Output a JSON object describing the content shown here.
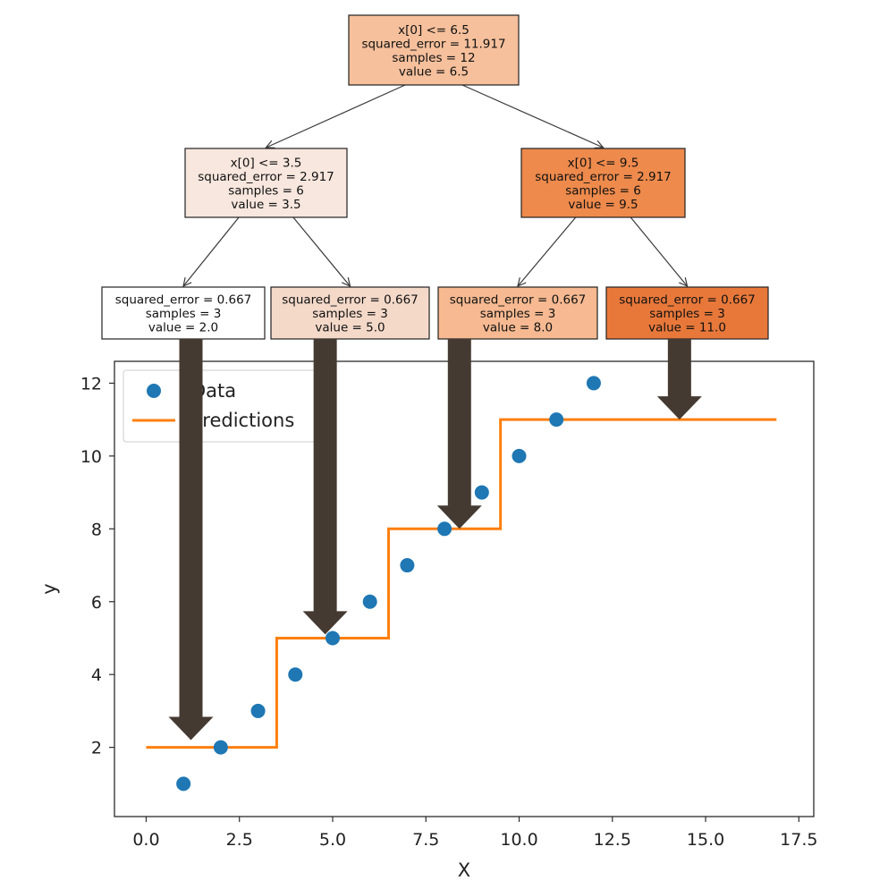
{
  "tree": {
    "nodes": [
      {
        "id": "root",
        "lines": [
          "x[0] <= 6.5",
          "squared_error = 11.917",
          "samples = 12",
          "value = 6.5"
        ],
        "fill": "#f6c09c"
      },
      {
        "id": "left",
        "lines": [
          "x[0] <= 3.5",
          "squared_error = 2.917",
          "samples = 6",
          "value = 3.5"
        ],
        "fill": "#f8e7de"
      },
      {
        "id": "right",
        "lines": [
          "x[0] <= 9.5",
          "squared_error = 2.917",
          "samples = 6",
          "value = 9.5"
        ],
        "fill": "#ee8a4c"
      },
      {
        "id": "leaf1",
        "lines": [
          "squared_error = 0.667",
          "samples = 3",
          "value = 2.0"
        ],
        "fill": "#ffffff"
      },
      {
        "id": "leaf2",
        "lines": [
          "squared_error = 0.667",
          "samples = 3",
          "value = 5.0"
        ],
        "fill": "#f4d9c9"
      },
      {
        "id": "leaf3",
        "lines": [
          "squared_error = 0.667",
          "samples = 3",
          "value = 8.0"
        ],
        "fill": "#f6b991"
      },
      {
        "id": "leaf4",
        "lines": [
          "squared_error = 0.667",
          "samples = 3",
          "value = 11.0"
        ],
        "fill": "#e8783a"
      }
    ],
    "edges": [
      [
        "root",
        "left"
      ],
      [
        "root",
        "right"
      ],
      [
        "left",
        "leaf1"
      ],
      [
        "left",
        "leaf2"
      ],
      [
        "right",
        "leaf3"
      ],
      [
        "right",
        "leaf4"
      ]
    ]
  },
  "chart_data": {
    "type": "scatter",
    "xlabel": "X",
    "ylabel": "y",
    "xlim": [
      -0.85,
      17.9
    ],
    "ylim": [
      0.1,
      12.6
    ],
    "xticks": [
      0.0,
      2.5,
      5.0,
      7.5,
      10.0,
      12.5,
      15.0,
      17.5
    ],
    "xtick_labels": [
      "0.0",
      "2.5",
      "5.0",
      "7.5",
      "10.0",
      "12.5",
      "15.0",
      "17.5"
    ],
    "yticks": [
      2,
      4,
      6,
      8,
      10,
      12
    ],
    "ytick_labels": [
      "2",
      "4",
      "6",
      "8",
      "10",
      "12"
    ],
    "grid": false,
    "legend_position": "top-left",
    "series": [
      {
        "name": "Data",
        "type": "scatter",
        "color": "#1f77b4",
        "x": [
          1,
          2,
          3,
          4,
          5,
          6,
          7,
          8,
          9,
          10,
          11,
          12
        ],
        "y": [
          1,
          2,
          3,
          4,
          5,
          6,
          7,
          8,
          9,
          10,
          11,
          12
        ]
      },
      {
        "name": "Predictions",
        "type": "step",
        "color": "#ff7f0e",
        "x": [
          0.0,
          3.5,
          3.5,
          6.5,
          6.5,
          9.5,
          9.5,
          16.9
        ],
        "y": [
          2.0,
          2.0,
          5.0,
          5.0,
          8.0,
          8.0,
          11.0,
          11.0
        ]
      }
    ],
    "annotations": [
      {
        "type": "arrow",
        "from_leaf": "leaf1",
        "to": [
          1.2,
          2.2
        ]
      },
      {
        "type": "arrow",
        "from_leaf": "leaf2",
        "to": [
          4.8,
          5.1
        ]
      },
      {
        "type": "arrow",
        "from_leaf": "leaf3",
        "to": [
          8.4,
          8.0
        ]
      },
      {
        "type": "arrow",
        "from_leaf": "leaf4",
        "to": [
          14.3,
          11.0
        ]
      }
    ],
    "arrow_color": "#453a31"
  }
}
